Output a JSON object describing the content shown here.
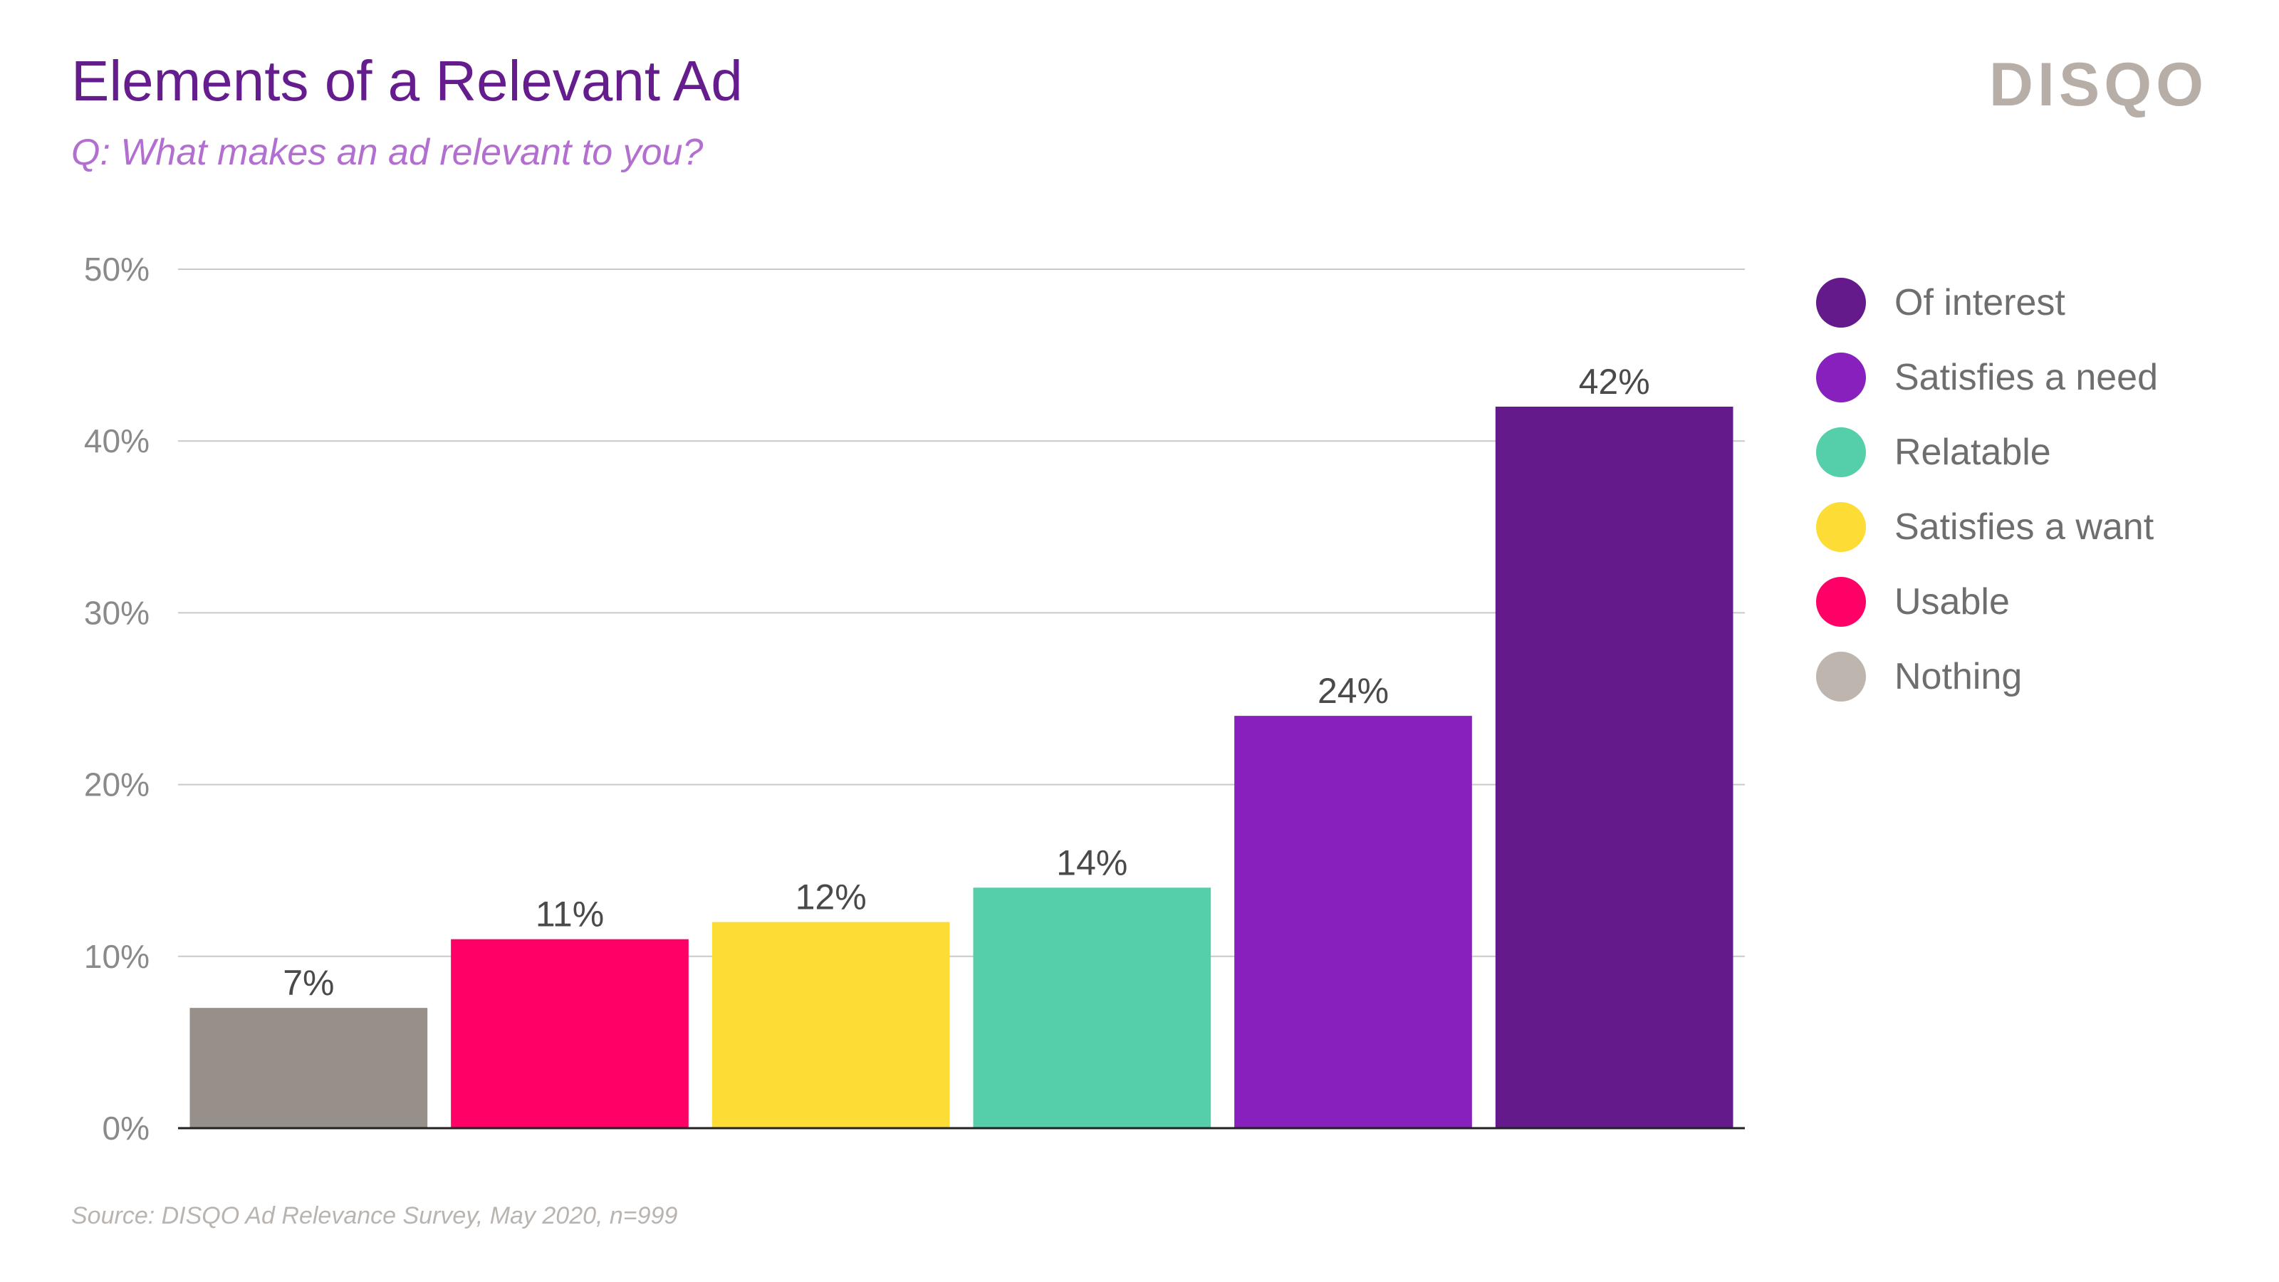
{
  "header": {
    "title": "Elements of a Relevant Ad",
    "subtitle": "Q: What makes an ad relevant to you?",
    "brand": "DISQO"
  },
  "footer": {
    "source": "Source: DISQO Ad Relevance Survey, May 2020, n=999"
  },
  "legend": [
    {
      "label": "Of interest",
      "color": "#651a8b"
    },
    {
      "label": "Satisfies a need",
      "color": "#8720bd"
    },
    {
      "label": "Relatable",
      "color": "#55cfa9"
    },
    {
      "label": "Satisfies a want",
      "color": "#fddd35"
    },
    {
      "label": "Usable",
      "color": "#ff0066"
    },
    {
      "label": "Nothing",
      "color": "#beb5ae"
    }
  ],
  "chart_data": {
    "type": "bar",
    "title": "Elements of a Relevant Ad",
    "subtitle": "Q: What makes an ad relevant to you?",
    "xlabel": "",
    "ylabel": "",
    "ylim": [
      0,
      50
    ],
    "yticks": [
      0,
      10,
      20,
      30,
      40,
      50
    ],
    "ytick_labels": [
      "0%",
      "10%",
      "20%",
      "30%",
      "40%",
      "50%"
    ],
    "grid": true,
    "legend_position": "right",
    "categories": [
      "Nothing",
      "Usable",
      "Satisfies a want",
      "Relatable",
      "Satisfies a need",
      "Of interest"
    ],
    "values": [
      7,
      11,
      12,
      14,
      24,
      42
    ],
    "value_labels": [
      "7%",
      "11%",
      "12%",
      "14%",
      "24%",
      "42%"
    ],
    "colors": [
      "#978f8a",
      "#ff0066",
      "#fddd35",
      "#55cfa9",
      "#8720bd",
      "#651a8b"
    ]
  }
}
